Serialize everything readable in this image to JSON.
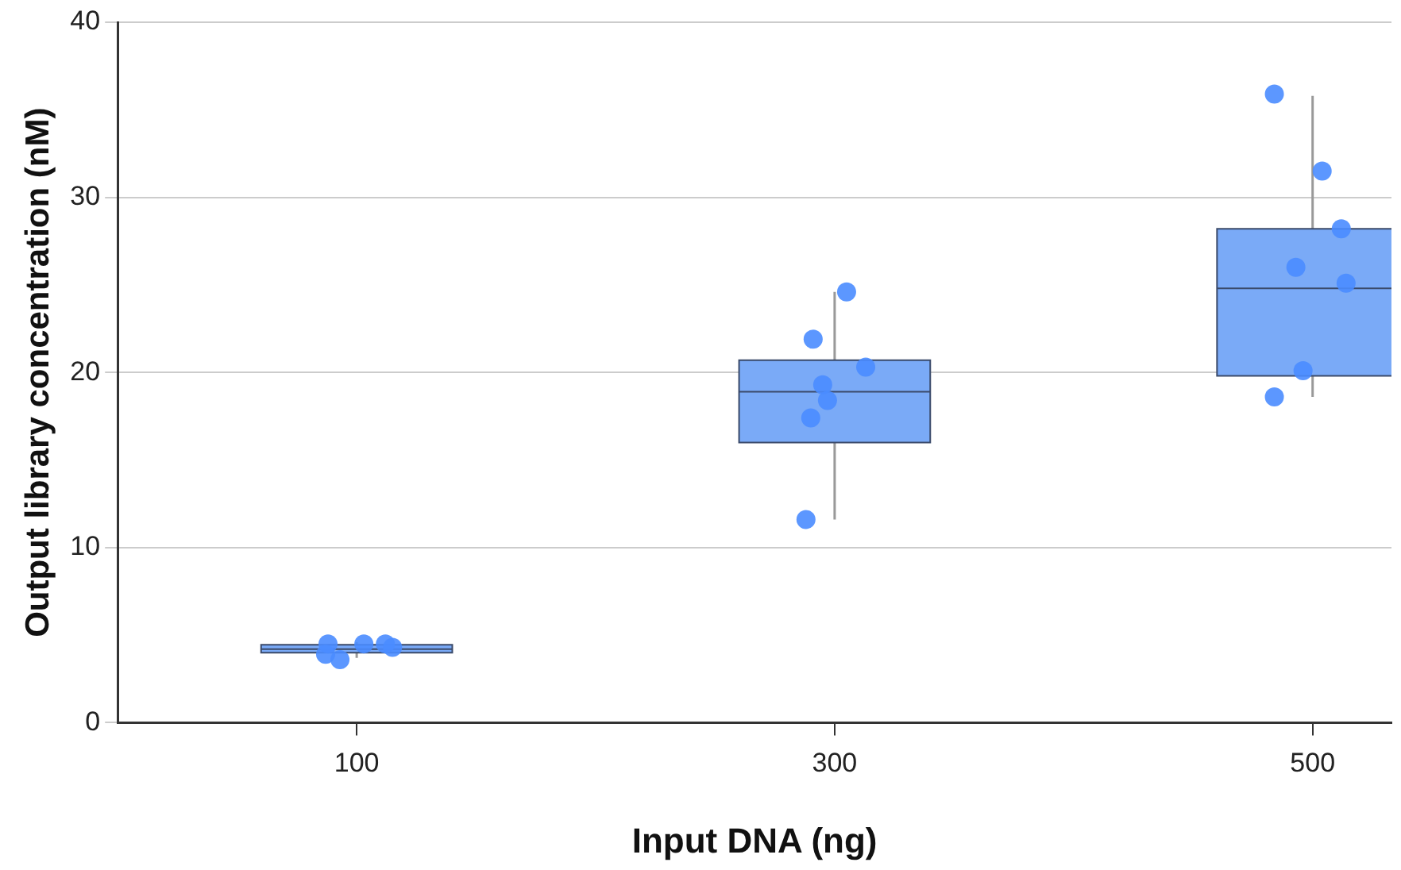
{
  "chart_data": {
    "type": "box",
    "xlabel": "Input DNA (ng)",
    "ylabel": "Output library concentration (nM)",
    "x": [
      100,
      300,
      500
    ],
    "color": "#7aaaf7",
    "boxes": [
      {
        "low": 3.7,
        "q1": 4.0,
        "median": 4.2,
        "q3": 4.45,
        "high": 4.6
      },
      {
        "low": 11.6,
        "q1": 16.0,
        "median": 18.9,
        "q3": 20.7,
        "high": 24.6
      },
      {
        "low": 18.6,
        "q1": 19.8,
        "median": 24.8,
        "q3": 28.2,
        "high": 35.8
      }
    ],
    "series": [
      {
        "type": "scatter",
        "color": "#4a8cff",
        "x": [
          88,
          87,
          93,
          103,
          112,
          115,
          305,
          291,
          313,
          295,
          297,
          290,
          288,
          484,
          504,
          512,
          493,
          514,
          496,
          484
        ],
        "values": [
          4.5,
          3.9,
          3.6,
          4.5,
          4.5,
          4.3,
          24.6,
          21.9,
          20.3,
          19.3,
          18.4,
          17.4,
          11.6,
          35.9,
          31.5,
          28.2,
          26.0,
          25.1,
          20.1,
          18.6
        ]
      }
    ],
    "xlim": [
      0,
      533
    ],
    "xticks": [
      100,
      300,
      500
    ],
    "ylim": [
      0,
      40
    ],
    "yticks": [
      0,
      10,
      20,
      30,
      40
    ],
    "grid": "y",
    "legend": false,
    "marker": "circle"
  }
}
